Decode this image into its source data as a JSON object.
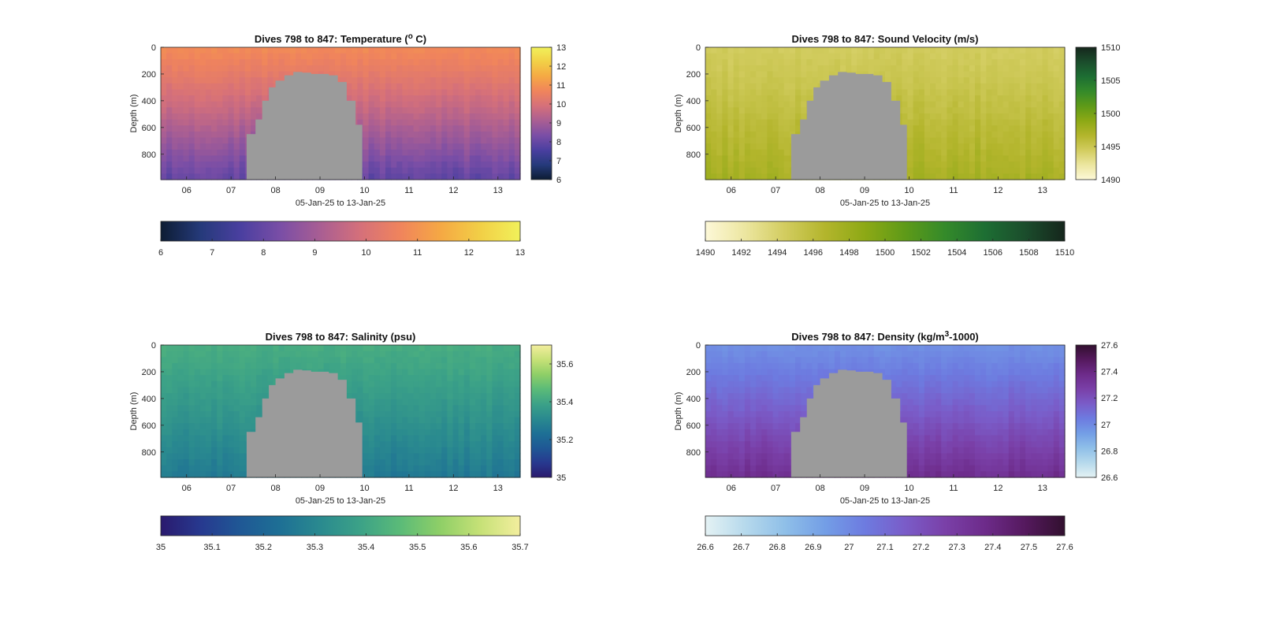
{
  "chart_data": [
    {
      "type": "heatmap",
      "title": "Dives 798 to 847: Temperature (",
      "title_sup": "o",
      "title_end": " C)",
      "ylabel": "Depth (m)",
      "xlabel": "05-Jan-25 to 13-Jan-25",
      "x_ticks": [
        "06",
        "07",
        "08",
        "09",
        "10",
        "11",
        "12",
        "13"
      ],
      "y_ticks": [
        "0",
        "200",
        "400",
        "600",
        "800"
      ],
      "xlim": [
        5.42,
        13.5
      ],
      "ylim": [
        0,
        990
      ],
      "colorbar_ticks": [
        "6",
        "7",
        "8",
        "9",
        "10",
        "11",
        "12",
        "13"
      ],
      "hcolorbar_ticks": [
        "6",
        "7",
        "8",
        "9",
        "10",
        "11",
        "12",
        "13"
      ],
      "clim": [
        6,
        13
      ],
      "colormap": [
        "#0d1c33",
        "#253a7a",
        "#4a3fa0",
        "#7a4ea6",
        "#a95e93",
        "#d5707a",
        "#f0845c",
        "#f5a844",
        "#f2cf46",
        "#f1f15a"
      ],
      "surface_value": 10.8,
      "deep_value": 7.9,
      "missing_color": "#9b9b9b",
      "gap_profile": [
        [
          7.35,
          650
        ],
        [
          7.55,
          540
        ],
        [
          7.7,
          400
        ],
        [
          7.85,
          300
        ],
        [
          8.0,
          250
        ],
        [
          8.2,
          210
        ],
        [
          8.4,
          185
        ],
        [
          8.6,
          190
        ],
        [
          8.8,
          200
        ],
        [
          9.0,
          200
        ],
        [
          9.2,
          210
        ],
        [
          9.4,
          260
        ],
        [
          9.6,
          400
        ],
        [
          9.8,
          580
        ],
        [
          9.95,
          990
        ]
      ]
    },
    {
      "type": "heatmap",
      "title": "Dives 798 to 847: Sound Velocity (m/s)",
      "ylabel": "Depth (m)",
      "xlabel": "05-Jan-25 to 13-Jan-25",
      "x_ticks": [
        "06",
        "07",
        "08",
        "09",
        "10",
        "11",
        "12",
        "13"
      ],
      "y_ticks": [
        "0",
        "200",
        "400",
        "600",
        "800"
      ],
      "xlim": [
        5.42,
        13.5
      ],
      "ylim": [
        0,
        990
      ],
      "colorbar_ticks": [
        "1490",
        "1495",
        "1500",
        "1505",
        "1510"
      ],
      "hcolorbar_ticks": [
        "1490",
        "1492",
        "1494",
        "1496",
        "1498",
        "1500",
        "1502",
        "1504",
        "1506",
        "1508",
        "1510"
      ],
      "clim": [
        1490,
        1510
      ],
      "colormap": [
        "#fdf8d8",
        "#ece6a0",
        "#d2cc5f",
        "#b3b52c",
        "#8da915",
        "#5e9a18",
        "#348a2a",
        "#1d6e33",
        "#1b4d2c",
        "#15261c"
      ],
      "surface_value": 1494.5,
      "deep_value": 1497.5,
      "missing_color": "#9b9b9b",
      "gap_profile": [
        [
          7.35,
          650
        ],
        [
          7.55,
          540
        ],
        [
          7.7,
          400
        ],
        [
          7.85,
          300
        ],
        [
          8.0,
          250
        ],
        [
          8.2,
          210
        ],
        [
          8.4,
          185
        ],
        [
          8.6,
          190
        ],
        [
          8.8,
          200
        ],
        [
          9.0,
          200
        ],
        [
          9.2,
          210
        ],
        [
          9.4,
          260
        ],
        [
          9.6,
          400
        ],
        [
          9.8,
          580
        ],
        [
          9.95,
          990
        ]
      ]
    },
    {
      "type": "heatmap",
      "title": "Dives 798 to 847: Salinity (psu)",
      "ylabel": "Depth (m)",
      "xlabel": "05-Jan-25 to 13-Jan-25",
      "x_ticks": [
        "06",
        "07",
        "08",
        "09",
        "10",
        "11",
        "12",
        "13"
      ],
      "y_ticks": [
        "0",
        "200",
        "400",
        "600",
        "800"
      ],
      "xlim": [
        5.42,
        13.5
      ],
      "ylim": [
        0,
        990
      ],
      "colorbar_ticks": [
        "35",
        "35.2",
        "35.4",
        "35.6"
      ],
      "hcolorbar_ticks": [
        "35",
        "35.1",
        "35.2",
        "35.3",
        "35.4",
        "35.5",
        "35.6",
        "35.7"
      ],
      "clim": [
        35,
        35.7
      ],
      "colormap": [
        "#2a1a6e",
        "#27398f",
        "#1f5895",
        "#1e7095",
        "#2a8a8f",
        "#3ca287",
        "#5bbb78",
        "#8fcf67",
        "#c6e177",
        "#f3ee9e"
      ],
      "surface_value": 35.42,
      "deep_value": 35.26,
      "missing_color": "#9b9b9b",
      "gap_profile": [
        [
          7.35,
          650
        ],
        [
          7.55,
          540
        ],
        [
          7.7,
          400
        ],
        [
          7.85,
          300
        ],
        [
          8.0,
          250
        ],
        [
          8.2,
          210
        ],
        [
          8.4,
          185
        ],
        [
          8.6,
          190
        ],
        [
          8.8,
          200
        ],
        [
          9.0,
          200
        ],
        [
          9.2,
          210
        ],
        [
          9.4,
          260
        ],
        [
          9.6,
          400
        ],
        [
          9.8,
          580
        ],
        [
          9.95,
          990
        ]
      ]
    },
    {
      "type": "heatmap",
      "title": "Dives 798 to 847: Density (kg/m",
      "title_sup": "3",
      "title_end": "-1000)",
      "ylabel": "Depth (m)",
      "xlabel": "05-Jan-25 to 13-Jan-25",
      "x_ticks": [
        "06",
        "07",
        "08",
        "09",
        "10",
        "11",
        "12",
        "13"
      ],
      "y_ticks": [
        "0",
        "200",
        "400",
        "600",
        "800"
      ],
      "xlim": [
        5.42,
        13.5
      ],
      "ylim": [
        0,
        990
      ],
      "colorbar_ticks": [
        "26.6",
        "26.8",
        "27",
        "27.2",
        "27.4",
        "27.6"
      ],
      "hcolorbar_ticks": [
        "26.6",
        "26.7",
        "26.8",
        "26.9",
        "27",
        "27.1",
        "27.2",
        "27.3",
        "27.4",
        "27.5",
        "27.6"
      ],
      "clim": [
        26.6,
        27.6
      ],
      "colormap": [
        "#e4f2f4",
        "#b6d9ec",
        "#8fbfe8",
        "#739ee6",
        "#6d7be0",
        "#7a5cc8",
        "#7a40a8",
        "#6d2b8a",
        "#55195e",
        "#32102f"
      ],
      "surface_value": 26.98,
      "deep_value": 27.36,
      "missing_color": "#9b9b9b",
      "gap_profile": [
        [
          7.35,
          650
        ],
        [
          7.55,
          540
        ],
        [
          7.7,
          400
        ],
        [
          7.85,
          300
        ],
        [
          8.0,
          250
        ],
        [
          8.2,
          210
        ],
        [
          8.4,
          185
        ],
        [
          8.6,
          190
        ],
        [
          8.8,
          200
        ],
        [
          9.0,
          200
        ],
        [
          9.2,
          210
        ],
        [
          9.4,
          260
        ],
        [
          9.6,
          400
        ],
        [
          9.8,
          580
        ],
        [
          9.95,
          990
        ]
      ]
    }
  ]
}
